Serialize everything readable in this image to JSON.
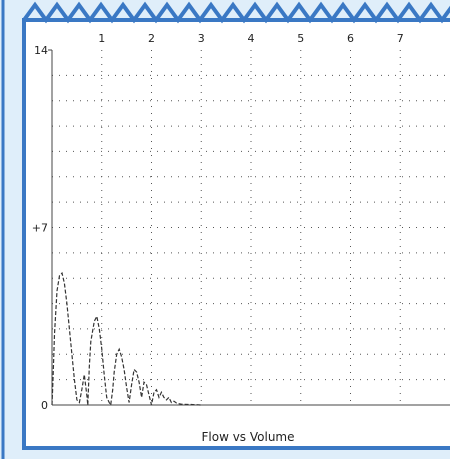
{
  "colors": {
    "outer_background": "#dfeefa",
    "frame_border": "#3a78c4",
    "panel_background": "#ffffff",
    "grid": "#555555",
    "series": "#333333"
  },
  "chart_data": {
    "type": "line",
    "title": "",
    "xlabel": "Flow vs Volume",
    "ylabel": "",
    "x_ticks": [
      "1",
      "2",
      "3",
      "4",
      "5",
      "6",
      "7"
    ],
    "x_tick_values": [
      1,
      2,
      3,
      4,
      5,
      6,
      7
    ],
    "y_ticks": [
      "0",
      "+7",
      "14"
    ],
    "y_tick_values": [
      0,
      7,
      14
    ],
    "xlim": [
      0,
      8
    ],
    "ylim": [
      0,
      14
    ],
    "grid": true,
    "grid_style": "dotted",
    "y_grid_step": 1,
    "x_grid_step": 1,
    "series": [
      {
        "line_style": "dashed",
        "x": [
          0.0,
          0.02,
          0.05,
          0.1,
          0.15,
          0.2,
          0.25,
          0.3,
          0.35,
          0.4,
          0.45,
          0.5,
          0.55,
          0.6,
          0.65,
          0.7,
          0.72,
          0.75,
          0.78,
          0.85,
          0.9,
          0.95,
          1.0,
          1.05,
          1.1,
          1.15,
          1.18,
          1.22,
          1.25,
          1.3,
          1.35,
          1.4,
          1.45,
          1.5,
          1.55,
          1.6,
          1.65,
          1.7,
          1.75,
          1.8,
          1.85,
          1.9,
          1.95,
          2.0,
          2.05,
          2.1,
          2.15,
          2.2,
          2.25,
          2.3,
          2.35,
          2.4,
          2.45,
          2.5,
          2.55,
          2.6,
          2.8,
          3.0
        ],
        "y": [
          0.0,
          1.0,
          2.8,
          4.5,
          5.1,
          5.2,
          4.8,
          4.0,
          3.0,
          2.0,
          1.0,
          0.2,
          0.1,
          0.6,
          1.2,
          0.4,
          0.0,
          1.5,
          2.5,
          3.3,
          3.5,
          3.0,
          2.2,
          1.2,
          0.3,
          0.1,
          0.0,
          0.6,
          1.3,
          2.0,
          2.2,
          1.9,
          1.4,
          0.7,
          0.1,
          0.8,
          1.4,
          1.3,
          0.9,
          0.3,
          0.9,
          0.8,
          0.4,
          0.0,
          0.5,
          0.6,
          0.3,
          0.5,
          0.3,
          0.2,
          0.3,
          0.1,
          0.15,
          0.08,
          0.05,
          0.03,
          0.02,
          0.0
        ]
      }
    ]
  }
}
